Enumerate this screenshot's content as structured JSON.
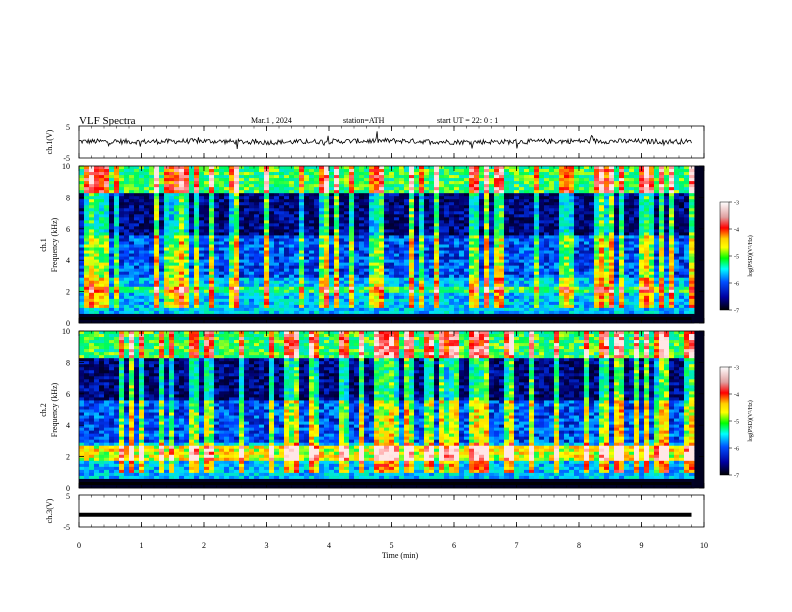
{
  "header": {
    "title": "VLF  Spectra",
    "date": "Mar.1  , 2024",
    "station": "station=ATH",
    "start": "start  UT  =    22: 0   : 1"
  },
  "colorbar": {
    "label": "log(PSD)(V²/Hz)",
    "ticks": [
      "-3",
      "-4",
      "-5",
      "-6",
      "-7"
    ],
    "colors": [
      "#ffffff",
      "#e0a0a0",
      "#ff0000",
      "#ffd000",
      "#ffff00",
      "#00ff00",
      "#00ffff",
      "#0050ff",
      "#0000a0",
      "#000000"
    ]
  },
  "chart_data": [
    {
      "type": "line",
      "panel": "ch1-waveform",
      "ylabel": "ch.1(V)",
      "yticks": [
        "5",
        "-5"
      ],
      "ylim": [
        -5,
        5
      ],
      "x": [
        0,
        1,
        2,
        3,
        4,
        5,
        6,
        7,
        8,
        9,
        9.8
      ],
      "values": [
        0.2,
        0.1,
        0.3,
        -0.1,
        0.2,
        0.4,
        0.0,
        0.1,
        0.3,
        0.2,
        0.1
      ]
    },
    {
      "type": "heatmap",
      "panel": "ch1-spectrogram",
      "ylabel": "ch.1\nFrequency (kHz)",
      "yticks": [
        "0",
        "2",
        "4",
        "6",
        "8",
        "10"
      ],
      "ylim": [
        0,
        10
      ],
      "xlim": [
        0,
        9.8
      ]
    },
    {
      "type": "heatmap",
      "panel": "ch2-spectrogram",
      "ylabel": "ch.2\nFrequency (kHz)",
      "yticks": [
        "0",
        "2",
        "4",
        "6",
        "8",
        "10"
      ],
      "ylim": [
        0,
        10
      ],
      "xlim": [
        0,
        9.8
      ]
    },
    {
      "type": "line",
      "panel": "ch3-waveform",
      "ylabel": "ch.3(V)",
      "yticks": [
        "5",
        "-5"
      ],
      "ylim": [
        -5,
        5
      ],
      "x": [
        0,
        9.8
      ],
      "values": [
        -1.2,
        -1.2
      ]
    }
  ],
  "xaxis": {
    "label": "Time  (min)",
    "ticks": [
      "0",
      "1",
      "2",
      "3",
      "4",
      "5",
      "6",
      "7",
      "8",
      "9",
      "10"
    ],
    "xlim": [
      0,
      10
    ]
  }
}
